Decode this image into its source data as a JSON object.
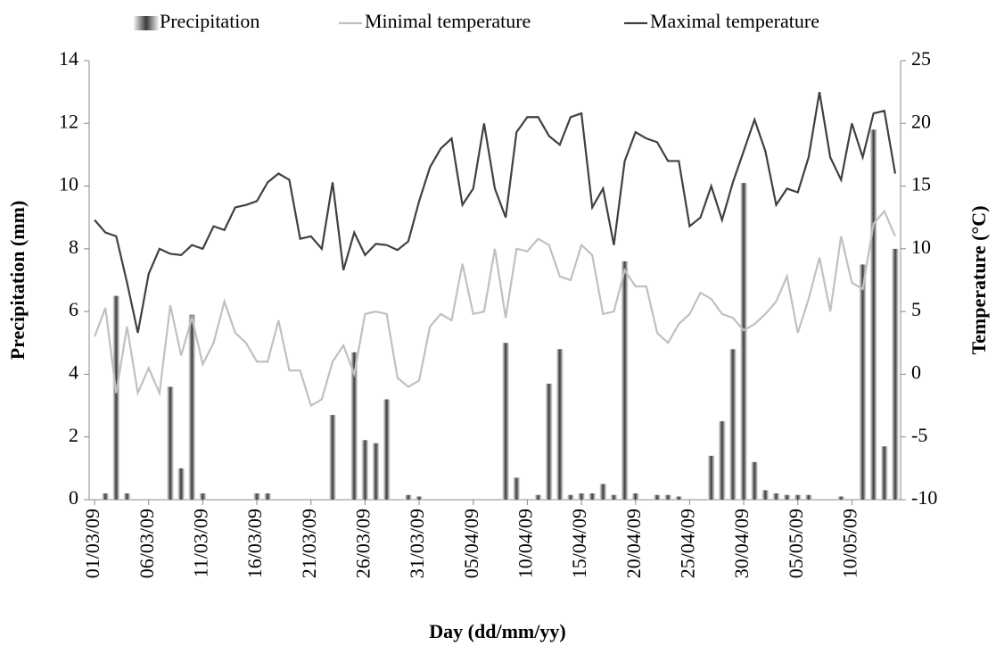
{
  "chart_data": {
    "type": "bar",
    "xlabel": "Day (dd/mm/yy)",
    "ylabel": "Precipitation (mm)",
    "y2label": "Temperature (°C)",
    "categories": [
      "01/03/09",
      null,
      null,
      null,
      null,
      "06/03/09",
      null,
      null,
      null,
      null,
      "11/03/09",
      null,
      null,
      null,
      null,
      "16/03/09",
      null,
      null,
      null,
      null,
      "21/03/09",
      null,
      null,
      null,
      null,
      "26/03/09",
      null,
      null,
      null,
      null,
      "31/03/09",
      null,
      null,
      null,
      null,
      "05/04/09",
      null,
      null,
      null,
      null,
      "10/04/09",
      null,
      null,
      null,
      null,
      "15/04/09",
      null,
      null,
      null,
      null,
      "20/04/09",
      null,
      null,
      null,
      null,
      "25/04/09",
      null,
      null,
      null,
      null,
      "30/04/09",
      null,
      null,
      null,
      null,
      "05/05/09",
      null,
      null,
      null,
      null,
      "10/05/09",
      null,
      null,
      null,
      null
    ],
    "series": [
      {
        "name": "Precipitation",
        "type": "bar",
        "axis": "y",
        "color": "#3a3a3a",
        "values": [
          0,
          0.2,
          6.5,
          0.2,
          0,
          0,
          0,
          3.6,
          1.0,
          5.9,
          0.2,
          0,
          0,
          0,
          0,
          0.2,
          0.2,
          0,
          0,
          0,
          0,
          0,
          2.7,
          0,
          4.7,
          1.9,
          1.8,
          3.2,
          0,
          0.15,
          0.1,
          0,
          0,
          0,
          0,
          0,
          0,
          0,
          5.0,
          0.7,
          0,
          0.15,
          3.7,
          4.8,
          0.15,
          0.2,
          0.2,
          0.5,
          0.15,
          7.6,
          0.2,
          0,
          0.15,
          0.15,
          0.1,
          0,
          0,
          1.4,
          2.5,
          4.8,
          10.1,
          1.2,
          0.3,
          0.2,
          0.15,
          0.15,
          0.15,
          0,
          0,
          0.1,
          0,
          7.5,
          11.8,
          1.7,
          8.0
        ]
      },
      {
        "name": "Minimal temperature",
        "type": "line",
        "axis": "y2",
        "color": "#c0c0c0",
        "values": [
          3,
          5.3,
          -1.5,
          3.8,
          -1.5,
          0.5,
          -1.5,
          5.5,
          1.5,
          4.5,
          0.8,
          2.5,
          5.8,
          3.3,
          2.5,
          1,
          1,
          4.3,
          0.3,
          0.3,
          -2.5,
          -2,
          1,
          2.3,
          0,
          4.8,
          5,
          4.8,
          -0.3,
          -1,
          -0.5,
          3.8,
          4.8,
          4.3,
          8.8,
          4.8,
          5,
          10,
          4.5,
          10,
          9.8,
          10.8,
          10.3,
          7.8,
          7.5,
          10.3,
          9.5,
          4.8,
          5,
          8.3,
          7,
          7,
          3.3,
          2.5,
          4,
          4.8,
          6.5,
          6,
          4.8,
          4.5,
          3.5,
          4,
          4.8,
          5.8,
          7.8,
          3.3,
          6,
          9.3,
          5,
          11,
          7.3,
          6.8,
          12,
          13,
          11
        ]
      },
      {
        "name": "Maximal temperature",
        "type": "line",
        "axis": "y2",
        "color": "#404040",
        "values": [
          12.3,
          11.3,
          11,
          7.3,
          3.3,
          8,
          10,
          9.6,
          9.5,
          10.3,
          10,
          11.8,
          11.5,
          13.3,
          13.5,
          13.8,
          15.3,
          16,
          15.5,
          10.8,
          11,
          10,
          15.3,
          8.3,
          11.3,
          9.5,
          10.4,
          10.3,
          9.9,
          10.6,
          13.8,
          16.5,
          18,
          18.8,
          13.5,
          14.8,
          20,
          14.8,
          12.5,
          19.3,
          20.5,
          20.5,
          19,
          18.3,
          20.5,
          20.8,
          13.3,
          14.8,
          10.3,
          17,
          19.3,
          18.8,
          18.5,
          17,
          17,
          11.8,
          12.5,
          15,
          12.3,
          15.3,
          17.8,
          20.3,
          17.8,
          13.5,
          14.8,
          14.5,
          17.3,
          22.5,
          17.3,
          15.5,
          20,
          17.3,
          20.8,
          21,
          16
        ]
      }
    ],
    "ylim": [
      0,
      14
    ],
    "yticks": [
      0,
      2,
      4,
      6,
      8,
      10,
      12,
      14
    ],
    "y2lim": [
      -10,
      25
    ],
    "y2ticks": [
      -10,
      -5,
      0,
      5,
      10,
      15,
      20,
      25
    ],
    "legend": "top",
    "grid": false
  }
}
